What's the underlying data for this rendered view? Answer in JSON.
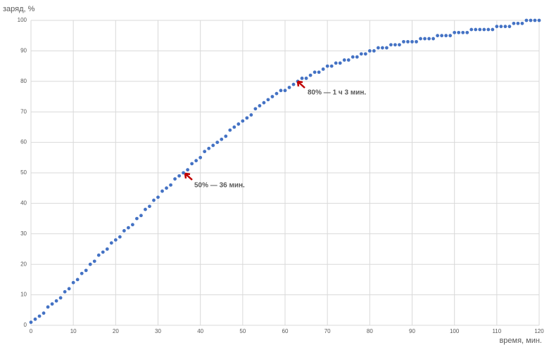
{
  "chart_data": {
    "type": "scatter",
    "y_label": "заряд, %",
    "x_label": "время, мин.",
    "color": "#4472c4",
    "grid": true,
    "xlim": [
      0,
      120
    ],
    "xticks": [
      0,
      10,
      20,
      30,
      40,
      50,
      60,
      70,
      80,
      90,
      100,
      110,
      120
    ],
    "ylim": [
      0,
      100
    ],
    "yticks": [
      0,
      10,
      20,
      30,
      40,
      50,
      60,
      70,
      80,
      90,
      100
    ],
    "x": [
      0,
      1,
      2,
      3,
      4,
      5,
      6,
      7,
      8,
      9,
      10,
      11,
      12,
      13,
      14,
      15,
      16,
      17,
      18,
      19,
      20,
      21,
      22,
      23,
      24,
      25,
      26,
      27,
      28,
      29,
      30,
      31,
      32,
      33,
      34,
      35,
      36,
      37,
      38,
      39,
      40,
      41,
      42,
      43,
      44,
      45,
      46,
      47,
      48,
      49,
      50,
      51,
      52,
      53,
      54,
      55,
      56,
      57,
      58,
      59,
      60,
      61,
      62,
      63,
      64,
      65,
      66,
      67,
      68,
      69,
      70,
      71,
      72,
      73,
      74,
      75,
      76,
      77,
      78,
      79,
      80,
      81,
      82,
      83,
      84,
      85,
      86,
      87,
      88,
      89,
      90,
      91,
      92,
      93,
      94,
      95,
      96,
      97,
      98,
      99,
      100,
      101,
      102,
      103,
      104,
      105,
      106,
      107,
      108,
      109,
      110,
      111,
      112,
      113,
      114,
      115,
      116,
      117,
      118,
      119,
      120
    ],
    "values": [
      1,
      2,
      3,
      4,
      6,
      7,
      8,
      9,
      11,
      12,
      14,
      15,
      17,
      18,
      20,
      21,
      23,
      24,
      25,
      27,
      28,
      29,
      31,
      32,
      33,
      35,
      36,
      38,
      39,
      41,
      42,
      44,
      45,
      46,
      48,
      49,
      50,
      51,
      53,
      54,
      55,
      57,
      58,
      59,
      60,
      61,
      62,
      64,
      65,
      66,
      67,
      68,
      69,
      71,
      72,
      73,
      74,
      75,
      76,
      77,
      77,
      78,
      79,
      80,
      81,
      81,
      82,
      83,
      83,
      84,
      85,
      85,
      86,
      86,
      87,
      87,
      88,
      88,
      89,
      89,
      90,
      90,
      91,
      91,
      91,
      92,
      92,
      92,
      93,
      93,
      93,
      93,
      94,
      94,
      94,
      94,
      95,
      95,
      95,
      95,
      96,
      96,
      96,
      96,
      97,
      97,
      97,
      97,
      97,
      97,
      98,
      98,
      98,
      98,
      99,
      99,
      99,
      100,
      100,
      100,
      100
    ],
    "annotations": [
      "50% — 36 мин.",
      "80% — 1 ч 3 мин."
    ]
  }
}
